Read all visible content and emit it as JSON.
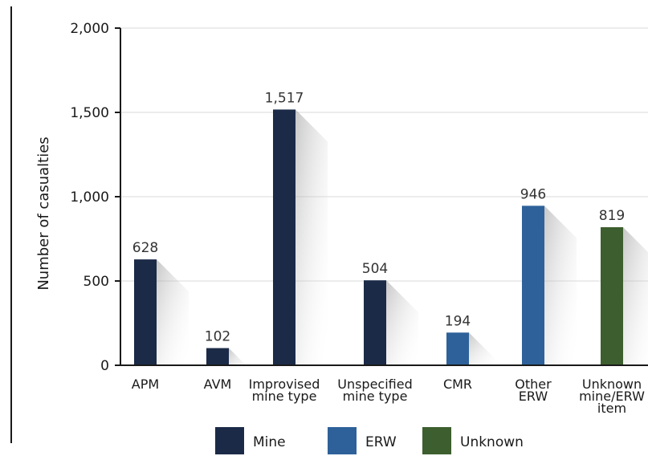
{
  "chart_data": {
    "type": "bar",
    "ylabel": "Number of casualties",
    "ylim": [
      0,
      2000
    ],
    "yticks": [
      0,
      500,
      1000,
      1500,
      2000
    ],
    "ytick_labels": [
      "0",
      "500",
      "1,000",
      "1,500",
      "2,000"
    ],
    "grid": true,
    "categories": [
      {
        "lines": [
          "APM"
        ],
        "value": 628,
        "label": "628",
        "group": "Mine"
      },
      {
        "lines": [
          "AVM"
        ],
        "value": 102,
        "label": "102",
        "group": "Mine"
      },
      {
        "lines": [
          "Improvised",
          "mine type"
        ],
        "value": 1517,
        "label": "1,517",
        "group": "Mine"
      },
      {
        "lines": [
          "Unspecified",
          "mine type"
        ],
        "value": 504,
        "label": "504",
        "group": "Mine"
      },
      {
        "lines": [
          "CMR"
        ],
        "value": 194,
        "label": "194",
        "group": "ERW"
      },
      {
        "lines": [
          "Other",
          "ERW"
        ],
        "value": 946,
        "label": "946",
        "group": "ERW"
      },
      {
        "lines": [
          "Unknown",
          "mine/ERW",
          "item"
        ],
        "value": 819,
        "label": "819",
        "group": "Unknown"
      }
    ],
    "legend": [
      {
        "name": "Mine",
        "color": "#1b2a47"
      },
      {
        "name": "ERW",
        "color": "#2e6199"
      },
      {
        "name": "Unknown",
        "color": "#3d5e2e"
      }
    ],
    "legend_position": "bottom"
  }
}
